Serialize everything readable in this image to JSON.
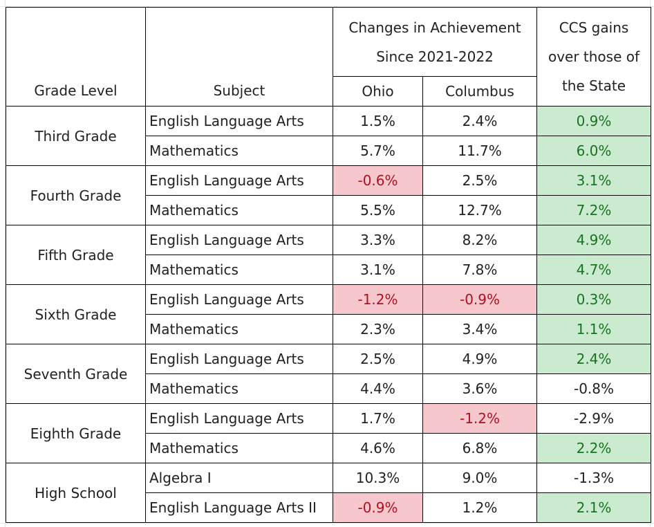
{
  "headers": {
    "grade_level": "Grade Level",
    "subject": "Subject",
    "changes_line1": "Changes in Achievement",
    "changes_line2": "Since 2021-2022",
    "ohio": "Ohio",
    "columbus": "Columbus",
    "gains_line1": "CCS gains",
    "gains_line2": "over those of",
    "gains_line3": "the State"
  },
  "colors": {
    "negative_bg": "#f6c8ce",
    "negative_text": "#b10f1f",
    "positive_bg": "#cbebd0",
    "positive_text": "#16731f"
  },
  "grades": [
    {
      "name": "Third Grade",
      "rows": [
        {
          "subject": "English Language Arts",
          "ohio": "1.5%",
          "columbus": "2.4%",
          "gain": "0.9%"
        },
        {
          "subject": "Mathematics",
          "ohio": "5.7%",
          "columbus": "11.7%",
          "gain": "6.0%"
        }
      ]
    },
    {
      "name": "Fourth Grade",
      "rows": [
        {
          "subject": "English Language Arts",
          "ohio": "-0.6%",
          "columbus": "2.5%",
          "gain": "3.1%"
        },
        {
          "subject": "Mathematics",
          "ohio": "5.5%",
          "columbus": "12.7%",
          "gain": "7.2%"
        }
      ]
    },
    {
      "name": "Fifth Grade",
      "rows": [
        {
          "subject": "English Language Arts",
          "ohio": "3.3%",
          "columbus": "8.2%",
          "gain": "4.9%"
        },
        {
          "subject": "Mathematics",
          "ohio": "3.1%",
          "columbus": "7.8%",
          "gain": "4.7%"
        }
      ]
    },
    {
      "name": "Sixth Grade",
      "rows": [
        {
          "subject": "English Language Arts",
          "ohio": "-1.2%",
          "columbus": "-0.9%",
          "gain": "0.3%"
        },
        {
          "subject": "Mathematics",
          "ohio": "2.3%",
          "columbus": "3.4%",
          "gain": "1.1%"
        }
      ]
    },
    {
      "name": "Seventh Grade",
      "rows": [
        {
          "subject": "English Language Arts",
          "ohio": "2.5%",
          "columbus": "4.9%",
          "gain": "2.4%"
        },
        {
          "subject": "Mathematics",
          "ohio": "4.4%",
          "columbus": "3.6%",
          "gain": "-0.8%"
        }
      ]
    },
    {
      "name": "Eighth Grade",
      "rows": [
        {
          "subject": "English Language Arts",
          "ohio": "1.7%",
          "columbus": "-1.2%",
          "gain": "-2.9%"
        },
        {
          "subject": "Mathematics",
          "ohio": "4.6%",
          "columbus": "6.8%",
          "gain": "2.2%"
        }
      ]
    },
    {
      "name": "High School",
      "rows": [
        {
          "subject": "Algebra I",
          "ohio": "10.3%",
          "columbus": "9.0%",
          "gain": "-1.3%"
        },
        {
          "subject": "English Language Arts II",
          "ohio": "-0.9%",
          "columbus": "1.2%",
          "gain": "2.1%"
        }
      ]
    }
  ]
}
